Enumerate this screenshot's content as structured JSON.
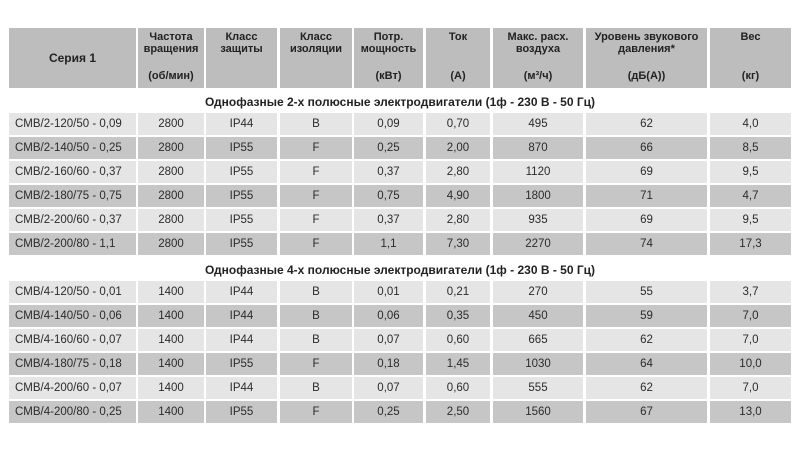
{
  "header": {
    "columns": [
      {
        "title": "Серия 1",
        "unit": ""
      },
      {
        "title": "Частота вращения",
        "unit": "(об/мин)"
      },
      {
        "title": "Класс защиты",
        "unit": ""
      },
      {
        "title": "Класс изоляции",
        "unit": ""
      },
      {
        "title": "Потр. мощность",
        "unit": "(кВт)"
      },
      {
        "title": "Ток",
        "unit": "(А)"
      },
      {
        "title": "Макс. расх. воздуха",
        "unit": "(м³/ч)"
      },
      {
        "title": "Уровень звукового давления*",
        "unit": "(дБ(А))"
      },
      {
        "title": "Вес",
        "unit": "(кг)"
      }
    ]
  },
  "sections": [
    {
      "title": "Однофазные 2-х полюсные электродвигатели (1ф - 230 В - 50 Гц)",
      "rows": [
        [
          "CMB/2-120/50 - 0,09",
          "2800",
          "IP44",
          "B",
          "0,09",
          "0,70",
          "495",
          "62",
          "4,0"
        ],
        [
          "CMB/2-140/50 - 0,25",
          "2800",
          "IP55",
          "F",
          "0,25",
          "2,00",
          "870",
          "66",
          "8,5"
        ],
        [
          "CMB/2-160/60 - 0,37",
          "2800",
          "IP55",
          "F",
          "0,37",
          "2,80",
          "1120",
          "69",
          "9,5"
        ],
        [
          "CMB/2-180/75 - 0,75",
          "2800",
          "IP55",
          "F",
          "0,75",
          "4,90",
          "1800",
          "71",
          "4,7"
        ],
        [
          "CMB/2-200/60 - 0,37",
          "2800",
          "IP55",
          "F",
          "0,37",
          "2,80",
          "935",
          "69",
          "9,5"
        ],
        [
          "CMB/2-200/80 - 1,1",
          "2800",
          "IP55",
          "F",
          "1,1",
          "7,30",
          "2270",
          "74",
          "17,3"
        ]
      ]
    },
    {
      "title": "Однофазные 4-х полюсные электродвигатели (1ф - 230 В - 50 Гц)",
      "rows": [
        [
          "CMB/4-120/50 - 0,01",
          "1400",
          "IP44",
          "B",
          "0,01",
          "0,21",
          "270",
          "55",
          "3,7"
        ],
        [
          "CMB/4-140/50 - 0,06",
          "1400",
          "IP44",
          "B",
          "0,06",
          "0,35",
          "450",
          "59",
          "7,0"
        ],
        [
          "CMB/4-160/60 - 0,07",
          "1400",
          "IP44",
          "B",
          "0,07",
          "0,60",
          "665",
          "62",
          "7,0"
        ],
        [
          "CMB/4-180/75 - 0,18",
          "1400",
          "IP55",
          "F",
          "0,18",
          "1,45",
          "1030",
          "64",
          "10,0"
        ],
        [
          "CMB/4-200/60 - 0,07",
          "1400",
          "IP44",
          "B",
          "0,07",
          "0,60",
          "555",
          "62",
          "7,0"
        ],
        [
          "CMB/4-200/80 - 0,25",
          "1400",
          "IP55",
          "F",
          "0,25",
          "2,50",
          "1560",
          "67",
          "13,0"
        ]
      ]
    }
  ],
  "colors": {
    "header": "#bdbdbd",
    "row_light": "#e5e5e5",
    "row_dark": "#c6c6c6"
  }
}
